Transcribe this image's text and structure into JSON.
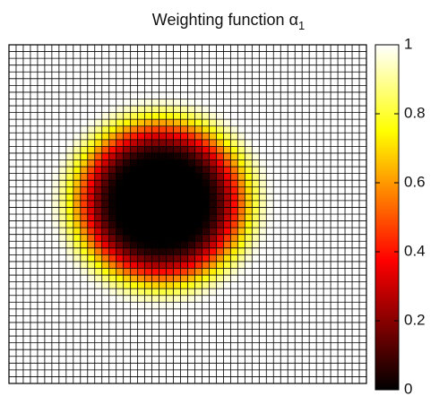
{
  "chart_data": {
    "type": "heatmap",
    "title_main": "Weighting function ",
    "title_symbol": "α",
    "title_subscript": "1",
    "grid_size": [
      50,
      50
    ],
    "grid": true,
    "field": {
      "shape": "radial",
      "center": [
        0.425,
        0.465
      ],
      "inner_radius": 0.12,
      "outer_radius": 0.32,
      "inside_value": 0,
      "outside_value": 1
    },
    "colorbar": {
      "colormap": "hot",
      "range": [
        0,
        1
      ],
      "ticks": [
        {
          "value": 0,
          "label": "0"
        },
        {
          "value": 0.2,
          "label": "0.2"
        },
        {
          "value": 0.4,
          "label": "0.4"
        },
        {
          "value": 0.6,
          "label": "0.6"
        },
        {
          "value": 0.8,
          "label": "0.8"
        },
        {
          "value": 1,
          "label": "1"
        }
      ]
    },
    "colors": {
      "grid_line": "#000000",
      "axis": "#000000"
    }
  }
}
